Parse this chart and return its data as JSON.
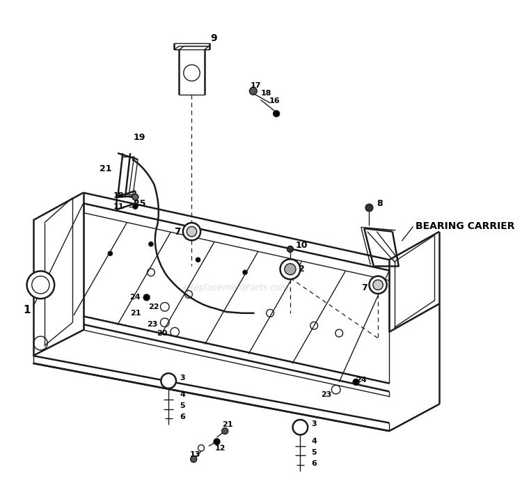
{
  "bg_color": "#ffffff",
  "line_color": "#1a1a1a",
  "watermark": "eReplacementParts.com",
  "bearing_carrier_label": "BEARING CARRIER",
  "figsize": [
    7.5,
    7.14
  ],
  "dpi": 100
}
